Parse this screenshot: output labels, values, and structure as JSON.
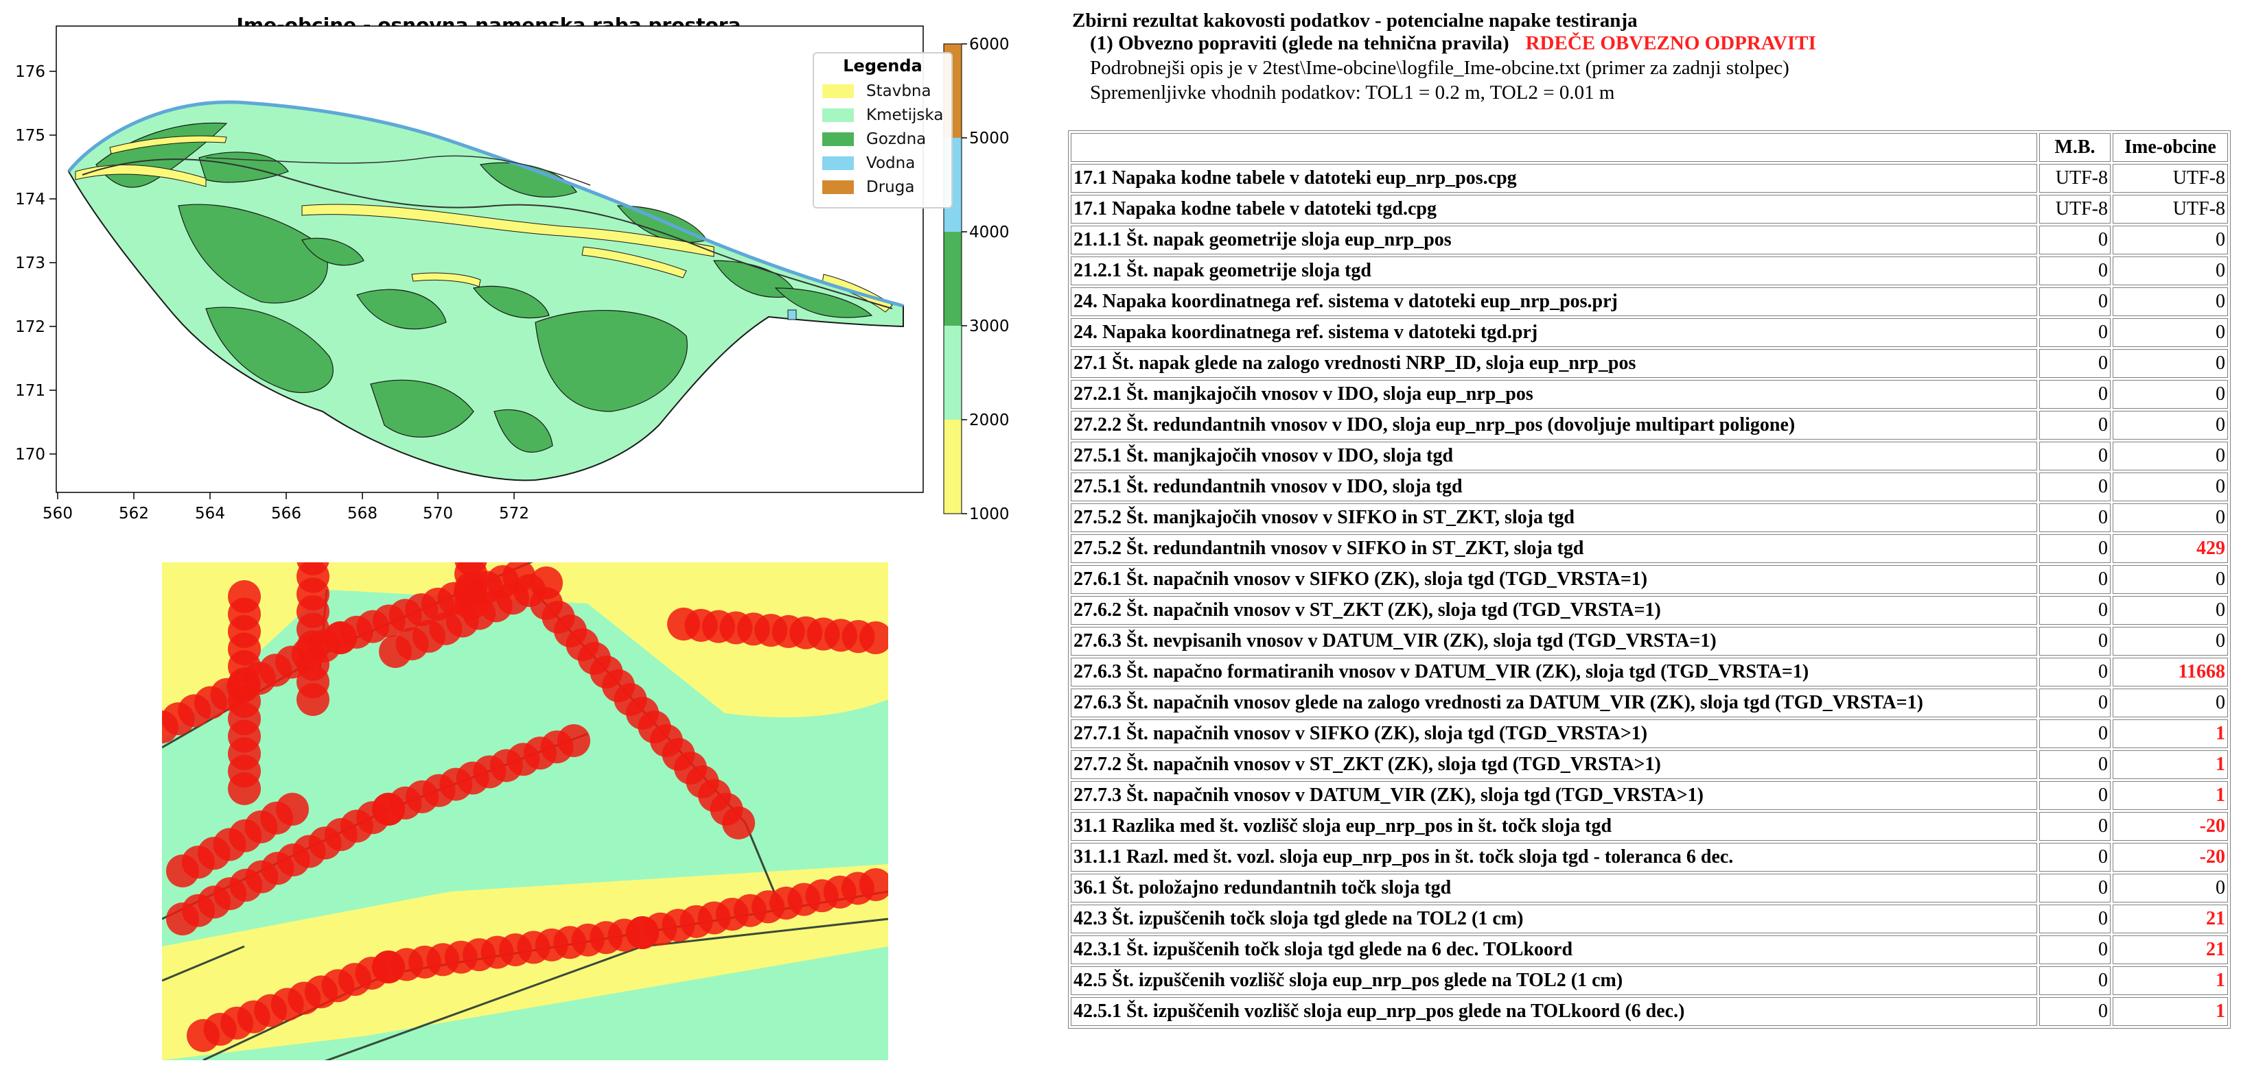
{
  "map": {
    "title": "Ime-obcine - osnovna namenska raba prostora",
    "x_ticks": [
      "560",
      "562",
      "564",
      "566",
      "568",
      "570",
      "572"
    ],
    "y_ticks": [
      "170",
      "171",
      "172",
      "173",
      "174",
      "175",
      "176"
    ],
    "colorbar_ticks": [
      "1000",
      "2000",
      "3000",
      "4000",
      "5000",
      "6000"
    ],
    "legend": {
      "title": "Legenda",
      "items": [
        {
          "label": "Stavbna",
          "color": "#fbf97a"
        },
        {
          "label": "Kmetijska",
          "color": "#a6f6c1"
        },
        {
          "label": "Gozdna",
          "color": "#4cb35a"
        },
        {
          "label": "Vodna",
          "color": "#87d5ef"
        },
        {
          "label": "Druga",
          "color": "#d5892f"
        }
      ]
    },
    "colorbar_colors": [
      "#fbf97a",
      "#a6f6c1",
      "#4cb35a",
      "#87d5ef",
      "#d5892f"
    ]
  },
  "report": {
    "title": "Zbirni rezultat kakovosti podatkov - potencialne napake testiranja",
    "subtitle": "(1) Obvezno popraviti (glede na tehnična pravila)",
    "subtitle_red": "RDEČE OBVEZNO ODPRAVITI",
    "detail_line": "Podrobnejši opis je v 2test\\Ime-obcine\\logfile_Ime-obcine.txt (primer za zadnji stolpec)",
    "vars_line": "Spremenljivke vhodnih podatkov: TOL1 = 0.2 m, TOL2 = 0.01 m",
    "headers": [
      "",
      "M.B.",
      "Ime-obcine"
    ],
    "rows": [
      {
        "name": "17.1 Napaka kodne tabele v datoteki eup_nrp_pos.cpg",
        "mb": "UTF-8",
        "value": "UTF-8",
        "error": false
      },
      {
        "name": "17.1 Napaka kodne tabele v datoteki tgd.cpg",
        "mb": "UTF-8",
        "value": "UTF-8",
        "error": false
      },
      {
        "name": "21.1.1 Št. napak geometrije sloja eup_nrp_pos",
        "mb": "0",
        "value": "0",
        "error": false
      },
      {
        "name": "21.2.1 Št. napak geometrije sloja tgd",
        "mb": "0",
        "value": "0",
        "error": false
      },
      {
        "name": "24. Napaka koordinatnega ref. sistema v datoteki eup_nrp_pos.prj",
        "mb": "0",
        "value": "0",
        "error": false
      },
      {
        "name": "24. Napaka koordinatnega ref. sistema v datoteki tgd.prj",
        "mb": "0",
        "value": "0",
        "error": false
      },
      {
        "name": "27.1 Št. napak glede na zalogo vrednosti NRP_ID, sloja eup_nrp_pos",
        "mb": "0",
        "value": "0",
        "error": false
      },
      {
        "name": "27.2.1 Št. manjkajočih vnosov v IDO, sloja eup_nrp_pos",
        "mb": "0",
        "value": "0",
        "error": false
      },
      {
        "name": "27.2.2 Št. redundantnih vnosov v IDO, sloja eup_nrp_pos (dovoljuje multipart poligone)",
        "mb": "0",
        "value": "0",
        "error": false
      },
      {
        "name": "27.5.1 Št. manjkajočih vnosov v IDO, sloja tgd",
        "mb": "0",
        "value": "0",
        "error": false
      },
      {
        "name": "27.5.1 Št. redundantnih vnosov v IDO, sloja tgd",
        "mb": "0",
        "value": "0",
        "error": false
      },
      {
        "name": "27.5.2 Št. manjkajočih vnosov v SIFKO in ST_ZKT, sloja tgd",
        "mb": "0",
        "value": "0",
        "error": false
      },
      {
        "name": "27.5.2 Št. redundantnih vnosov v SIFKO in ST_ZKT, sloja tgd",
        "mb": "0",
        "value": "429",
        "error": true
      },
      {
        "name": "27.6.1 Št. napačnih vnosov v SIFKO (ZK), sloja tgd (TGD_VRSTA=1)",
        "mb": "0",
        "value": "0",
        "error": false
      },
      {
        "name": "27.6.2 Št. napačnih vnosov v ST_ZKT (ZK), sloja tgd (TGD_VRSTA=1)",
        "mb": "0",
        "value": "0",
        "error": false
      },
      {
        "name": "27.6.3 Št. nevpisanih vnosov v DATUM_VIR (ZK), sloja tgd (TGD_VRSTA=1)",
        "mb": "0",
        "value": "0",
        "error": false
      },
      {
        "name": "27.6.3 Št. napačno formatiranih vnosov v DATUM_VIR (ZK), sloja tgd (TGD_VRSTA=1)",
        "mb": "0",
        "value": "11668",
        "error": true
      },
      {
        "name": "27.6.3 Št. napačnih vnosov glede na zalogo vrednosti za DATUM_VIR (ZK), sloja tgd (TGD_VRSTA=1)",
        "mb": "0",
        "value": "0",
        "error": false
      },
      {
        "name": "27.7.1 Št. napačnih vnosov v SIFKO (ZK), sloja tgd (TGD_VRSTA>1)",
        "mb": "0",
        "value": "1",
        "error": true
      },
      {
        "name": "27.7.2 Št. napačnih vnosov v ST_ZKT (ZK), sloja tgd (TGD_VRSTA>1)",
        "mb": "0",
        "value": "1",
        "error": true
      },
      {
        "name": "27.7.3 Št. napačnih vnosov v DATUM_VIR (ZK), sloja tgd (TGD_VRSTA>1)",
        "mb": "0",
        "value": "1",
        "error": true
      },
      {
        "name": "31.1 Razlika med št. vozlišč sloja eup_nrp_pos in št. točk sloja tgd",
        "mb": "0",
        "value": "-20",
        "error": true
      },
      {
        "name": "31.1.1 Razl. med št. vozl. sloja eup_nrp_pos in št. točk sloja tgd - toleranca 6 dec.",
        "mb": "0",
        "value": "-20",
        "error": true
      },
      {
        "name": "36.1 Št. položajno redundantnih točk sloja tgd",
        "mb": "0",
        "value": "0",
        "error": false
      },
      {
        "name": "42.3 Št. izpuščenih točk sloja tgd glede na TOL2 (1 cm)",
        "mb": "0",
        "value": "21",
        "error": true
      },
      {
        "name": "42.3.1 Št. izpuščenih točk sloja tgd glede na 6 dec. TOLkoord",
        "mb": "0",
        "value": "21",
        "error": true
      },
      {
        "name": "42.5 Št. izpuščenih vozlišč sloja eup_nrp_pos glede na TOL2 (1 cm)",
        "mb": "0",
        "value": "1",
        "error": true
      },
      {
        "name": "42.5.1 Št. izpuščenih vozlišč sloja eup_nrp_pos glede na TOLkoord (6 dec.)",
        "mb": "0",
        "value": "1",
        "error": true
      }
    ]
  }
}
